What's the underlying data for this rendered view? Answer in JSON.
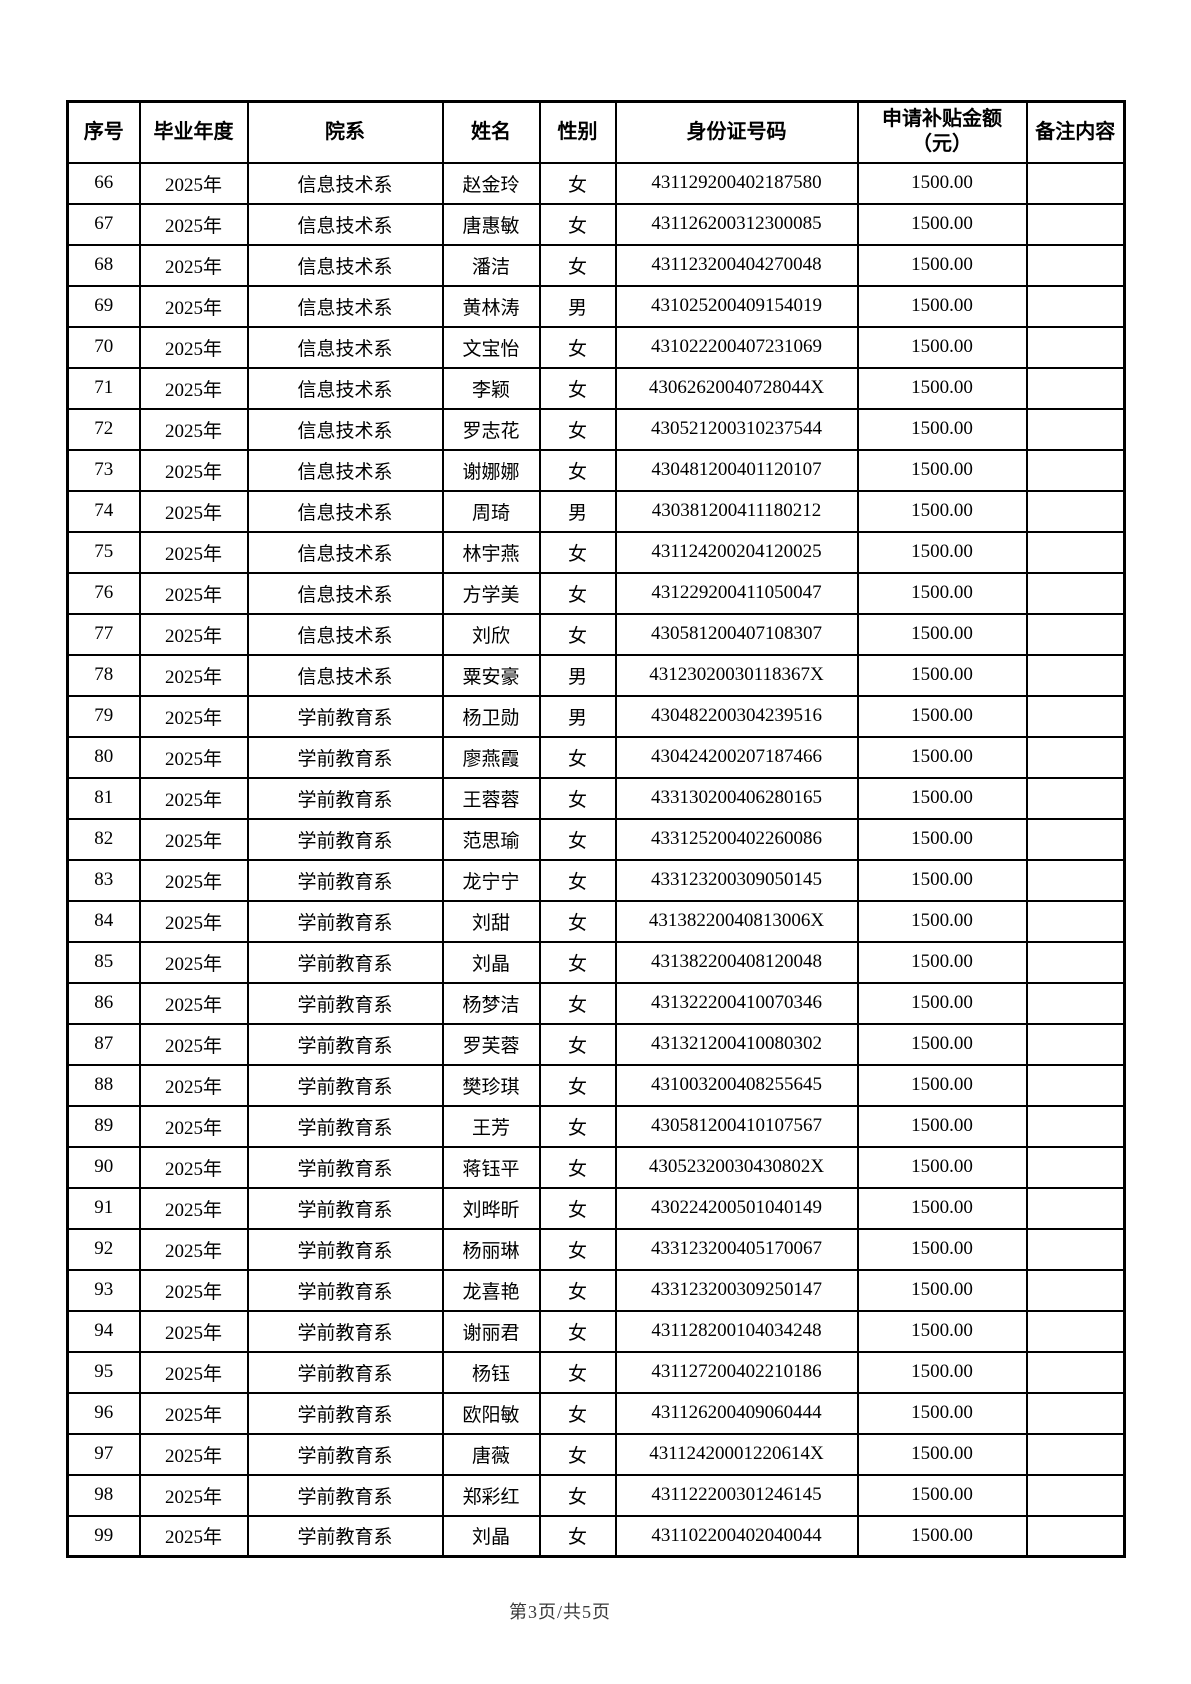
{
  "table": {
    "columns": [
      {
        "key": "no",
        "label": "序号"
      },
      {
        "key": "year",
        "label": "毕业年度"
      },
      {
        "key": "dept",
        "label": "院系"
      },
      {
        "key": "name",
        "label": "姓名"
      },
      {
        "key": "gender",
        "label": "性别"
      },
      {
        "key": "id",
        "label": "身份证号码"
      },
      {
        "key": "amount",
        "label": "申请补贴金额\n（元）"
      },
      {
        "key": "remark",
        "label": "备注内容"
      }
    ],
    "rows": [
      {
        "no": "66",
        "year": "2025年",
        "dept": "信息技术系",
        "name": "赵金玲",
        "gender": "女",
        "id": "431129200402187580",
        "amount": "1500.00",
        "remark": ""
      },
      {
        "no": "67",
        "year": "2025年",
        "dept": "信息技术系",
        "name": "唐惠敏",
        "gender": "女",
        "id": "431126200312300085",
        "amount": "1500.00",
        "remark": ""
      },
      {
        "no": "68",
        "year": "2025年",
        "dept": "信息技术系",
        "name": "潘洁",
        "gender": "女",
        "id": "431123200404270048",
        "amount": "1500.00",
        "remark": ""
      },
      {
        "no": "69",
        "year": "2025年",
        "dept": "信息技术系",
        "name": "黄林涛",
        "gender": "男",
        "id": "431025200409154019",
        "amount": "1500.00",
        "remark": ""
      },
      {
        "no": "70",
        "year": "2025年",
        "dept": "信息技术系",
        "name": "文宝怡",
        "gender": "女",
        "id": "431022200407231069",
        "amount": "1500.00",
        "remark": ""
      },
      {
        "no": "71",
        "year": "2025年",
        "dept": "信息技术系",
        "name": "李颖",
        "gender": "女",
        "id": "43062620040728044X",
        "amount": "1500.00",
        "remark": ""
      },
      {
        "no": "72",
        "year": "2025年",
        "dept": "信息技术系",
        "name": "罗志花",
        "gender": "女",
        "id": "430521200310237544",
        "amount": "1500.00",
        "remark": ""
      },
      {
        "no": "73",
        "year": "2025年",
        "dept": "信息技术系",
        "name": "谢娜娜",
        "gender": "女",
        "id": "430481200401120107",
        "amount": "1500.00",
        "remark": ""
      },
      {
        "no": "74",
        "year": "2025年",
        "dept": "信息技术系",
        "name": "周琦",
        "gender": "男",
        "id": "430381200411180212",
        "amount": "1500.00",
        "remark": ""
      },
      {
        "no": "75",
        "year": "2025年",
        "dept": "信息技术系",
        "name": "林宇燕",
        "gender": "女",
        "id": "431124200204120025",
        "amount": "1500.00",
        "remark": ""
      },
      {
        "no": "76",
        "year": "2025年",
        "dept": "信息技术系",
        "name": "方学美",
        "gender": "女",
        "id": "431229200411050047",
        "amount": "1500.00",
        "remark": ""
      },
      {
        "no": "77",
        "year": "2025年",
        "dept": "信息技术系",
        "name": "刘欣",
        "gender": "女",
        "id": "430581200407108307",
        "amount": "1500.00",
        "remark": ""
      },
      {
        "no": "78",
        "year": "2025年",
        "dept": "信息技术系",
        "name": "粟安豪",
        "gender": "男",
        "id": "43123020030118367X",
        "amount": "1500.00",
        "remark": ""
      },
      {
        "no": "79",
        "year": "2025年",
        "dept": "学前教育系",
        "name": "杨卫勋",
        "gender": "男",
        "id": "430482200304239516",
        "amount": "1500.00",
        "remark": ""
      },
      {
        "no": "80",
        "year": "2025年",
        "dept": "学前教育系",
        "name": "廖燕霞",
        "gender": "女",
        "id": "430424200207187466",
        "amount": "1500.00",
        "remark": ""
      },
      {
        "no": "81",
        "year": "2025年",
        "dept": "学前教育系",
        "name": "王蓉蓉",
        "gender": "女",
        "id": "433130200406280165",
        "amount": "1500.00",
        "remark": ""
      },
      {
        "no": "82",
        "year": "2025年",
        "dept": "学前教育系",
        "name": "范思瑜",
        "gender": "女",
        "id": "433125200402260086",
        "amount": "1500.00",
        "remark": ""
      },
      {
        "no": "83",
        "year": "2025年",
        "dept": "学前教育系",
        "name": "龙宁宁",
        "gender": "女",
        "id": "433123200309050145",
        "amount": "1500.00",
        "remark": ""
      },
      {
        "no": "84",
        "year": "2025年",
        "dept": "学前教育系",
        "name": "刘甜",
        "gender": "女",
        "id": "43138220040813006X",
        "amount": "1500.00",
        "remark": ""
      },
      {
        "no": "85",
        "year": "2025年",
        "dept": "学前教育系",
        "name": "刘晶",
        "gender": "女",
        "id": "431382200408120048",
        "amount": "1500.00",
        "remark": ""
      },
      {
        "no": "86",
        "year": "2025年",
        "dept": "学前教育系",
        "name": "杨梦洁",
        "gender": "女",
        "id": "431322200410070346",
        "amount": "1500.00",
        "remark": ""
      },
      {
        "no": "87",
        "year": "2025年",
        "dept": "学前教育系",
        "name": "罗芙蓉",
        "gender": "女",
        "id": "431321200410080302",
        "amount": "1500.00",
        "remark": ""
      },
      {
        "no": "88",
        "year": "2025年",
        "dept": "学前教育系",
        "name": "樊珍琪",
        "gender": "女",
        "id": "431003200408255645",
        "amount": "1500.00",
        "remark": ""
      },
      {
        "no": "89",
        "year": "2025年",
        "dept": "学前教育系",
        "name": "王芳",
        "gender": "女",
        "id": "430581200410107567",
        "amount": "1500.00",
        "remark": ""
      },
      {
        "no": "90",
        "year": "2025年",
        "dept": "学前教育系",
        "name": "蒋钰平",
        "gender": "女",
        "id": "43052320030430802X",
        "amount": "1500.00",
        "remark": ""
      },
      {
        "no": "91",
        "year": "2025年",
        "dept": "学前教育系",
        "name": "刘晔昕",
        "gender": "女",
        "id": "430224200501040149",
        "amount": "1500.00",
        "remark": ""
      },
      {
        "no": "92",
        "year": "2025年",
        "dept": "学前教育系",
        "name": "杨丽琳",
        "gender": "女",
        "id": "433123200405170067",
        "amount": "1500.00",
        "remark": ""
      },
      {
        "no": "93",
        "year": "2025年",
        "dept": "学前教育系",
        "name": "龙喜艳",
        "gender": "女",
        "id": "433123200309250147",
        "amount": "1500.00",
        "remark": ""
      },
      {
        "no": "94",
        "year": "2025年",
        "dept": "学前教育系",
        "name": "谢丽君",
        "gender": "女",
        "id": "431128200104034248",
        "amount": "1500.00",
        "remark": ""
      },
      {
        "no": "95",
        "year": "2025年",
        "dept": "学前教育系",
        "name": "杨钰",
        "gender": "女",
        "id": "431127200402210186",
        "amount": "1500.00",
        "remark": ""
      },
      {
        "no": "96",
        "year": "2025年",
        "dept": "学前教育系",
        "name": "欧阳敏",
        "gender": "女",
        "id": "431126200409060444",
        "amount": "1500.00",
        "remark": ""
      },
      {
        "no": "97",
        "year": "2025年",
        "dept": "学前教育系",
        "name": "唐薇",
        "gender": "女",
        "id": "43112420001220614X",
        "amount": "1500.00",
        "remark": ""
      },
      {
        "no": "98",
        "year": "2025年",
        "dept": "学前教育系",
        "name": "郑彩红",
        "gender": "女",
        "id": "431122200301246145",
        "amount": "1500.00",
        "remark": ""
      },
      {
        "no": "99",
        "year": "2025年",
        "dept": "学前教育系",
        "name": "刘晶",
        "gender": "女",
        "id": "431102200402040044",
        "amount": "1500.00",
        "remark": ""
      }
    ]
  },
  "footer": {
    "page_text": "第3页/共5页"
  }
}
